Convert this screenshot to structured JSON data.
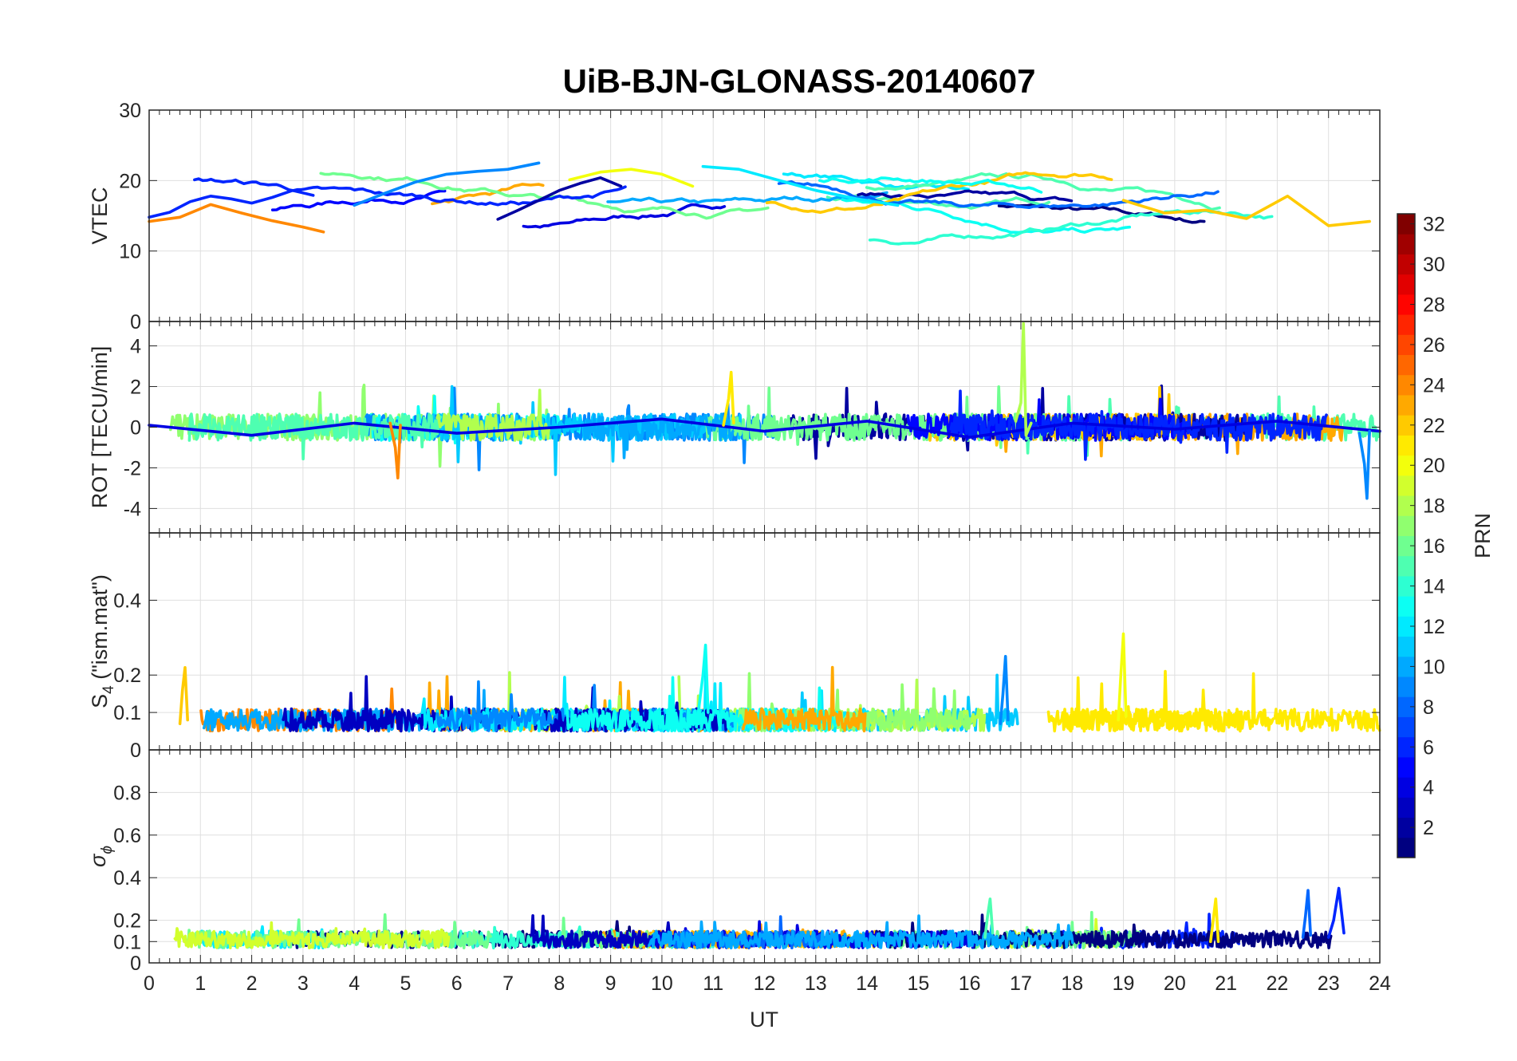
{
  "chart_data": [
    {
      "type": "line",
      "panel": "vtec",
      "title": "UiB-BJN-GLONASS-20140607",
      "ylabel": "VTEC",
      "ylim": [
        0,
        30
      ],
      "yticks": [
        0,
        10,
        20,
        30
      ],
      "xlim": [
        0,
        24
      ],
      "grid": true,
      "series": [
        {
          "name": "PRN 2",
          "prn": 2,
          "x": [
            6.8,
            7.2,
            7.6,
            8.0,
            8.4,
            8.8,
            9.2
          ],
          "y": [
            14.5,
            15.8,
            17.2,
            18.6,
            19.6,
            20.4,
            19.2
          ]
        },
        {
          "name": "PRN 6",
          "prn": 6,
          "x": [
            0.0,
            0.4,
            0.8,
            1.2,
            1.6,
            2.0,
            2.4,
            2.8,
            3.2
          ],
          "y": [
            14.8,
            15.5,
            17.0,
            17.8,
            17.4,
            16.8,
            17.6,
            18.6,
            17.9
          ]
        },
        {
          "name": "PRN 9",
          "prn": 9,
          "x": [
            4.0,
            4.6,
            5.2,
            5.8,
            6.4,
            7.0,
            7.6
          ],
          "y": [
            16.5,
            18.2,
            19.8,
            20.9,
            21.3,
            21.6,
            22.5
          ]
        },
        {
          "name": "PRN 12",
          "prn": 12,
          "x": [
            10.8,
            11.5,
            12.2,
            13.0,
            13.8,
            14.6
          ],
          "y": [
            22.0,
            21.6,
            20.2,
            18.6,
            17.4,
            16.5
          ]
        },
        {
          "name": "PRN 20",
          "prn": 20,
          "x": [
            8.2,
            8.8,
            9.4,
            10.0,
            10.6
          ],
          "y": [
            20.1,
            21.2,
            21.6,
            20.9,
            19.2
          ]
        },
        {
          "name": "PRN 22",
          "prn": 22,
          "x": [
            19.0,
            19.8,
            20.6,
            21.4,
            22.2,
            23.0,
            23.8
          ],
          "y": [
            17.2,
            15.4,
            15.8,
            14.6,
            17.8,
            13.6,
            14.2
          ]
        },
        {
          "name": "PRN 24",
          "prn": 24,
          "x": [
            0.0,
            0.6,
            1.2,
            1.8,
            2.4,
            3.0,
            3.4
          ],
          "y": [
            14.2,
            14.8,
            16.6,
            15.4,
            14.3,
            13.4,
            12.7
          ]
        }
      ]
    },
    {
      "type": "line",
      "panel": "rot",
      "ylabel": "ROT [TECU/min]",
      "ylim": [
        -5.2,
        5.2
      ],
      "yticks": [
        -4,
        -2,
        0,
        2,
        4
      ],
      "xlim": [
        0,
        24
      ],
      "grid": true,
      "series": [
        {
          "name": "PRN 4",
          "prn": 4,
          "x": [
            0.0,
            2.0,
            4.0,
            6.0,
            8.0,
            10.0,
            12.0,
            14.0,
            16.0,
            18.0,
            20.0,
            22.0,
            24.0
          ],
          "y": [
            0.1,
            -0.4,
            0.2,
            -0.3,
            0.0,
            0.4,
            -0.2,
            0.3,
            -0.5,
            0.2,
            -0.1,
            0.3,
            -0.2
          ]
        },
        {
          "name": "PRN 18",
          "prn": 18,
          "x": [
            16.9,
            17.0,
            17.05,
            17.1,
            17.2
          ],
          "y": [
            0.3,
            1.2,
            5.1,
            -0.4,
            0.2
          ]
        },
        {
          "name": "PRN 21",
          "prn": 21,
          "x": [
            11.2,
            11.3,
            11.35,
            11.4
          ],
          "y": [
            0.1,
            1.4,
            2.7,
            0.2
          ]
        },
        {
          "name": "PRN 9",
          "prn": 9,
          "x": [
            23.6,
            23.7,
            23.75,
            23.8
          ],
          "y": [
            -0.3,
            -1.8,
            -3.5,
            -0.2
          ]
        },
        {
          "name": "PRN 24",
          "prn": 24,
          "x": [
            4.7,
            4.8,
            4.85,
            4.9
          ],
          "y": [
            0.2,
            -1.0,
            -2.5,
            0.1
          ]
        }
      ]
    },
    {
      "type": "line",
      "panel": "s4",
      "ylabel": "S",
      "ylabel_sub": "4",
      "ylabel_suffix": " (\"ism.mat\")",
      "ylim": [
        0,
        0.58
      ],
      "yticks": [
        0,
        0.1,
        0.2,
        0.4
      ],
      "ytick_labels": [
        "0",
        "0.1",
        "0.2",
        "0.4"
      ],
      "xlim": [
        0,
        24
      ],
      "grid": true,
      "series": [
        {
          "name": "PRN 20",
          "prn": 20,
          "x": [
            18.9,
            18.95,
            19.0,
            19.05
          ],
          "y": [
            0.08,
            0.2,
            0.31,
            0.09
          ]
        },
        {
          "name": "PRN 13",
          "prn": 13,
          "x": [
            10.7,
            10.8,
            10.85,
            10.9
          ],
          "y": [
            0.09,
            0.2,
            0.28,
            0.1
          ]
        },
        {
          "name": "PRN 9",
          "prn": 9,
          "x": [
            16.6,
            16.65,
            16.7,
            16.75
          ],
          "y": [
            0.07,
            0.15,
            0.25,
            0.08
          ]
        },
        {
          "name": "PRN 22",
          "prn": 22,
          "x": [
            0.6,
            0.65,
            0.7,
            0.75
          ],
          "y": [
            0.07,
            0.16,
            0.22,
            0.08
          ]
        }
      ]
    },
    {
      "type": "line",
      "panel": "sigma-phi",
      "ylabel": "σ",
      "ylabel_sub": "ϕ",
      "ylim": [
        0,
        1
      ],
      "yticks": [
        0,
        0.1,
        0.2,
        0.4,
        0.6,
        0.8
      ],
      "ytick_labels": [
        "0",
        "0.1",
        "0.2",
        "0.4",
        "0.6",
        "0.8"
      ],
      "xlim": [
        0,
        24
      ],
      "xlabel": "UT",
      "xticks": [
        0,
        1,
        2,
        3,
        4,
        5,
        6,
        7,
        8,
        9,
        10,
        11,
        12,
        13,
        14,
        15,
        16,
        17,
        18,
        19,
        20,
        21,
        22,
        23,
        24
      ],
      "grid": true,
      "series": [
        {
          "name": "PRN 6",
          "prn": 6,
          "x": [
            23.0,
            23.1,
            23.2,
            23.3
          ],
          "y": [
            0.12,
            0.2,
            0.35,
            0.14
          ]
        },
        {
          "name": "PRN 8",
          "prn": 8,
          "x": [
            22.5,
            22.55,
            22.6,
            22.65
          ],
          "y": [
            0.12,
            0.22,
            0.34,
            0.13
          ]
        },
        {
          "name": "PRN 21",
          "prn": 21,
          "x": [
            20.7,
            20.75,
            20.8,
            20.85
          ],
          "y": [
            0.1,
            0.2,
            0.3,
            0.1
          ]
        },
        {
          "name": "PRN 15",
          "prn": 15,
          "x": [
            16.3,
            16.35,
            16.4,
            16.45
          ],
          "y": [
            0.12,
            0.22,
            0.3,
            0.14
          ]
        }
      ]
    },
    {
      "type": "colorbar",
      "label": "PRN",
      "range": [
        1,
        32
      ],
      "ticks": [
        2,
        4,
        6,
        8,
        10,
        12,
        14,
        16,
        18,
        20,
        22,
        24,
        26,
        28,
        30,
        32
      ],
      "colormap": "jet"
    }
  ],
  "colors": {
    "text": "#262626",
    "grid": "#dfdfdf",
    "background": "#ffffff"
  }
}
